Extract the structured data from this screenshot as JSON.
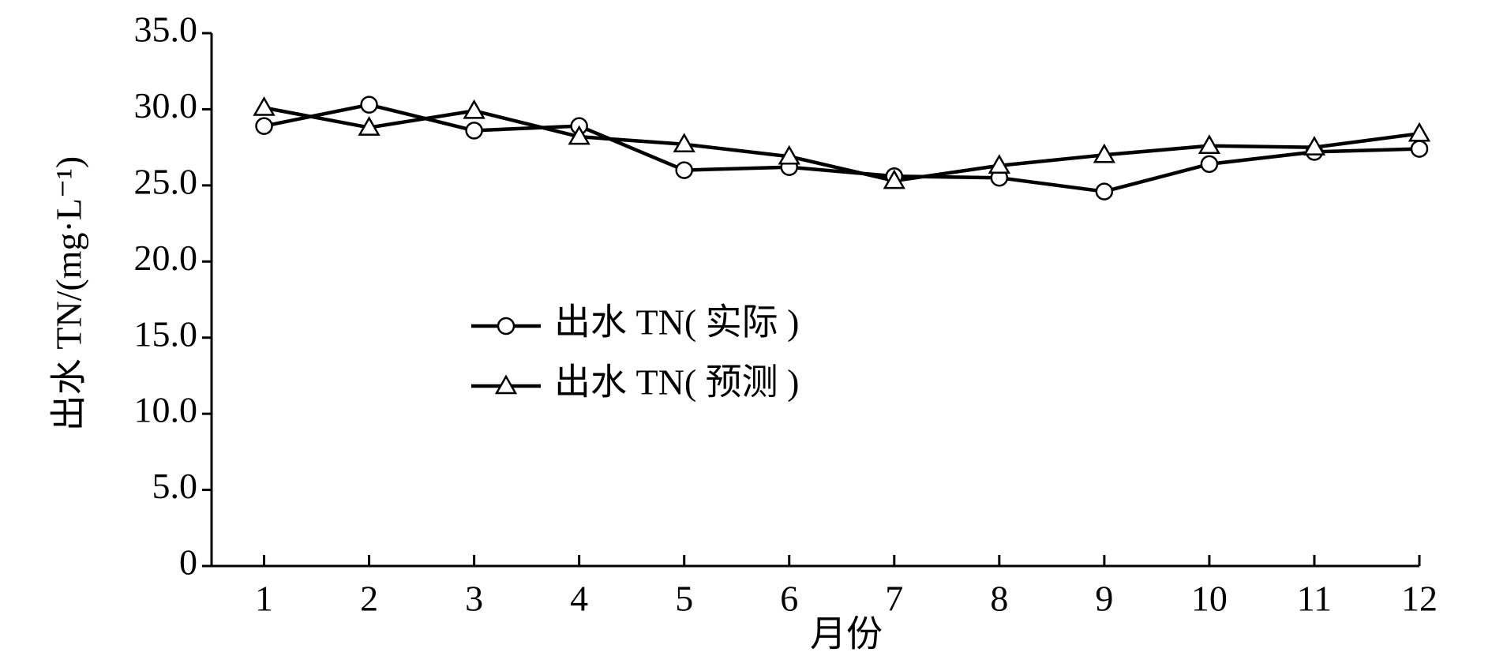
{
  "chart_data": {
    "type": "line",
    "x_label": "月份",
    "y_label": "出水 TN/(mg·L⁻¹)",
    "x": [
      1,
      2,
      3,
      4,
      5,
      6,
      7,
      8,
      9,
      10,
      11,
      12
    ],
    "xlim": [
      0.5,
      12
    ],
    "xticks": [
      1,
      2,
      3,
      4,
      5,
      6,
      7,
      8,
      9,
      10,
      11,
      12
    ],
    "ylim": [
      0,
      35
    ],
    "yticks": [
      0,
      {
        "value": 5,
        "label": "5.0"
      },
      {
        "value": 10,
        "label": "10.0"
      },
      {
        "value": 15,
        "label": "15.0"
      },
      {
        "value": 20,
        "label": "20.0"
      },
      {
        "value": 25,
        "label": "25.0"
      },
      {
        "value": 30,
        "label": "30.0"
      },
      {
        "value": 35,
        "label": "35.0"
      }
    ],
    "grid": false,
    "legend": "center-left",
    "series": [
      {
        "name": "出水 TN( 实际 )",
        "color": "#000000",
        "marker": "circle",
        "values": [
          28.9,
          30.3,
          28.6,
          28.9,
          26.0,
          26.2,
          25.6,
          25.5,
          24.6,
          26.4,
          27.2,
          27.4
        ]
      },
      {
        "name": "出水 TN( 预测 )",
        "color": "#000000",
        "marker": "triangle",
        "values": [
          30.1,
          28.8,
          29.9,
          28.2,
          27.7,
          26.9,
          25.3,
          26.3,
          27.0,
          27.6,
          27.5,
          28.4
        ]
      }
    ]
  }
}
